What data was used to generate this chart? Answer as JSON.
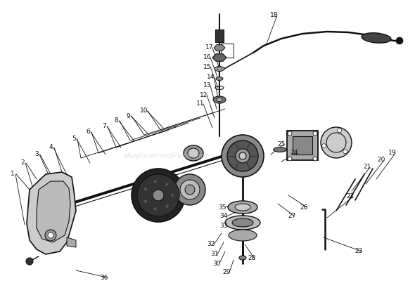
{
  "bg_color": "#ffffff",
  "line_color": "#111111",
  "watermark": "eReplacementParts.com",
  "figsize": [
    5.9,
    4.2
  ],
  "dpi": 100,
  "part_labels": [
    [
      1,
      18,
      248,
      35,
      320
    ],
    [
      2,
      32,
      232,
      52,
      285
    ],
    [
      3,
      52,
      220,
      78,
      268
    ],
    [
      4,
      72,
      210,
      98,
      255
    ],
    [
      5,
      105,
      198,
      128,
      232
    ],
    [
      6,
      125,
      188,
      150,
      220
    ],
    [
      7,
      148,
      180,
      172,
      210
    ],
    [
      8,
      165,
      172,
      190,
      200
    ],
    [
      9,
      182,
      165,
      210,
      190
    ],
    [
      10,
      205,
      158,
      232,
      182
    ],
    [
      11,
      285,
      148,
      302,
      182
    ],
    [
      12,
      290,
      135,
      305,
      168
    ],
    [
      13,
      295,
      122,
      308,
      155
    ],
    [
      14,
      300,
      110,
      310,
      140
    ],
    [
      15,
      295,
      95,
      310,
      125
    ],
    [
      16,
      295,
      82,
      310,
      112
    ],
    [
      17,
      298,
      68,
      312,
      98
    ],
    [
      18,
      390,
      22,
      378,
      65
    ],
    [
      19,
      558,
      218,
      535,
      255
    ],
    [
      20,
      542,
      228,
      520,
      262
    ],
    [
      21,
      522,
      238,
      500,
      272
    ],
    [
      22,
      498,
      280,
      465,
      310
    ],
    [
      23,
      510,
      358,
      460,
      338
    ],
    [
      24,
      418,
      218,
      400,
      230
    ],
    [
      25,
      400,
      205,
      385,
      220
    ],
    [
      26,
      432,
      295,
      410,
      278
    ],
    [
      27,
      415,
      308,
      395,
      290
    ],
    [
      28,
      358,
      368,
      348,
      348
    ],
    [
      29,
      322,
      388,
      332,
      370
    ],
    [
      30,
      308,
      375,
      320,
      358
    ],
    [
      31,
      305,
      362,
      318,
      345
    ],
    [
      32,
      300,
      348,
      315,
      332
    ],
    [
      33,
      318,
      322,
      335,
      315
    ],
    [
      34,
      318,
      308,
      335,
      302
    ],
    [
      35,
      316,
      295,
      332,
      290
    ],
    [
      36,
      148,
      395,
      108,
      385
    ]
  ]
}
